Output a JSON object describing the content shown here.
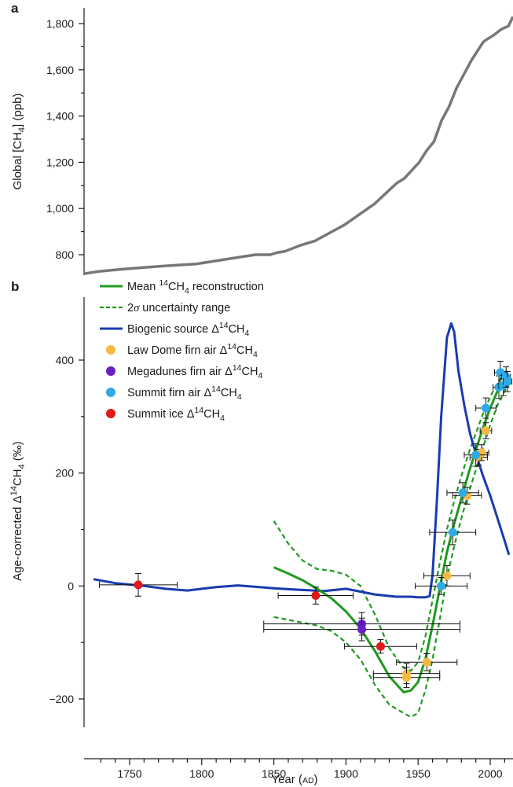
{
  "chart_data": [
    {
      "panel": "a",
      "type": "line",
      "ylabel_parts": {
        "pre": "Global [CH",
        "sub": "4",
        "post": "] (ppb)"
      },
      "yticks": [
        800,
        1000,
        1200,
        1400,
        1600,
        1800
      ],
      "ytick_labels": [
        "800",
        "1,000",
        "1,200",
        "1,400",
        "1,600",
        "1,800"
      ],
      "ylim": [
        710,
        1860
      ],
      "xlim": [
        1725,
        2013
      ],
      "series": [
        {
          "color": "#777777",
          "x": [
            1725,
            1735,
            1750,
            1765,
            1780,
            1800,
            1815,
            1830,
            1840,
            1850,
            1855,
            1860,
            1870,
            1880,
            1890,
            1900,
            1910,
            1920,
            1930,
            1935,
            1940,
            1945,
            1950,
            1955,
            1960,
            1965,
            1970,
            1975,
            1980,
            1985,
            1990,
            1993,
            1995,
            2000,
            2005,
            2010,
            2013
          ],
          "y": [
            718,
            728,
            737,
            745,
            752,
            760,
            775,
            790,
            800,
            800,
            810,
            815,
            840,
            860,
            895,
            930,
            975,
            1020,
            1080,
            1110,
            1130,
            1165,
            1200,
            1250,
            1290,
            1380,
            1440,
            1520,
            1580,
            1640,
            1690,
            1720,
            1730,
            1750,
            1775,
            1790,
            1830
          ]
        }
      ]
    },
    {
      "panel": "b",
      "type": "line",
      "xlabel_parts": {
        "pre": "Year (",
        "sc": "AD",
        "post": ")"
      },
      "ylabel_parts": {
        "pre": "Age-corrected Δ",
        "sup": "14",
        "mid": "CH",
        "sub": "4",
        "post": " (‰)"
      },
      "xticks": [
        1750,
        1800,
        1850,
        1900,
        1950,
        2000
      ],
      "xtick_labels": [
        "1750",
        "1800",
        "1850",
        "1900",
        "1950",
        "2000"
      ],
      "yticks": [
        -200,
        0,
        200,
        400
      ],
      "ytick_labels": [
        "−200",
        "0",
        "200",
        "400"
      ],
      "xlim": [
        1725,
        2013
      ],
      "ylim": [
        -255,
        505
      ],
      "legend_position": "top-left",
      "series": [
        {
          "key": "mean",
          "label": {
            "pre": "Mean ",
            "sup": "14",
            "mid": "CH",
            "sub": "4",
            "post": " reconstruction"
          },
          "color": "#1f9a1f",
          "style": "solid",
          "x": [
            1850,
            1860,
            1870,
            1880,
            1890,
            1900,
            1910,
            1920,
            1930,
            1940,
            1945,
            1950,
            1955,
            1960,
            1965,
            1970,
            1975,
            1980,
            1985,
            1990,
            1995,
            2000,
            2005,
            2010,
            2013
          ],
          "y": [
            33,
            22,
            10,
            -5,
            -22,
            -45,
            -75,
            -115,
            -160,
            -188,
            -185,
            -170,
            -130,
            -70,
            -5,
            60,
            110,
            155,
            200,
            240,
            280,
            315,
            345,
            365,
            375
          ]
        },
        {
          "key": "upper",
          "label": {
            "pre": "2",
            "ital": "σ",
            "post": " uncertainty range"
          },
          "color": "#1f9a1f",
          "style": "dashed",
          "x": [
            1850,
            1860,
            1870,
            1880,
            1890,
            1900,
            1910,
            1920,
            1930,
            1940,
            1945,
            1950,
            1955,
            1960,
            1965,
            1970,
            1975,
            1980,
            1985,
            1990,
            1995,
            2000,
            2005,
            2010,
            2013
          ],
          "y": [
            115,
            75,
            45,
            30,
            27,
            20,
            0,
            -50,
            -110,
            -145,
            -150,
            -135,
            -90,
            -25,
            40,
            100,
            150,
            195,
            235,
            270,
            305,
            335,
            360,
            375,
            380
          ]
        },
        {
          "key": "lower",
          "label": null,
          "color": "#1f9a1f",
          "style": "dashed",
          "x": [
            1850,
            1860,
            1870,
            1880,
            1890,
            1900,
            1910,
            1920,
            1930,
            1940,
            1945,
            1950,
            1955,
            1960,
            1965,
            1970,
            1975,
            1980,
            1985,
            1990,
            1995,
            2000,
            2005,
            2010,
            2013
          ],
          "y": [
            -55,
            -60,
            -65,
            -70,
            -80,
            -100,
            -130,
            -175,
            -210,
            -225,
            -232,
            -225,
            -185,
            -130,
            -60,
            15,
            70,
            120,
            165,
            205,
            245,
            285,
            320,
            345,
            355
          ]
        },
        {
          "key": "biogenic",
          "label": {
            "pre": "Biogenic source Δ",
            "sup": "14",
            "mid": "CH",
            "sub": "4",
            "post": ""
          },
          "color": "#1a3bb0",
          "style": "solid",
          "x": [
            1725,
            1740,
            1760,
            1775,
            1790,
            1800,
            1810,
            1825,
            1840,
            1850,
            1870,
            1885,
            1900,
            1910,
            1920,
            1935,
            1945,
            1950,
            1955,
            1958,
            1960,
            1963,
            1966,
            1970,
            1973,
            1975,
            1978,
            1982,
            1986,
            1990,
            1995,
            2000,
            2005,
            2010,
            2013
          ],
          "y": [
            12,
            5,
            0,
            -5,
            -8,
            -5,
            -2,
            1,
            -2,
            -4,
            -7,
            -9,
            -5,
            -10,
            -15,
            -19,
            -19,
            -20,
            -20,
            -18,
            20,
            150,
            300,
            440,
            465,
            450,
            380,
            320,
            270,
            235,
            195,
            160,
            120,
            80,
            55
          ]
        }
      ],
      "point_series": [
        {
          "key": "lawdome",
          "label": {
            "pre": "Law Dome firn air Δ",
            "sup": "14",
            "mid": "CH",
            "sub": "4",
            "post": ""
          },
          "color": "#f5b841",
          "points": [
            {
              "x": 1942,
              "y": -155,
              "xerr": 23,
              "yerr": 18
            },
            {
              "x": 1942,
              "y": -162,
              "xerr": 23,
              "yerr": 18
            },
            {
              "x": 1956,
              "y": -135,
              "xerr": 21,
              "yerr": 15
            },
            {
              "x": 1970,
              "y": 18,
              "xerr": 16,
              "yerr": 18
            },
            {
              "x": 1984,
              "y": 160,
              "xerr": 10,
              "yerr": 15
            },
            {
              "x": 1992,
              "y": 228,
              "xerr": 6,
              "yerr": 14
            },
            {
              "x": 1994,
              "y": 236,
              "xerr": 5,
              "yerr": 14
            },
            {
              "x": 1997,
              "y": 275,
              "xerr": 4,
              "yerr": 14
            }
          ]
        },
        {
          "key": "megadunes",
          "label": {
            "pre": "Megadunes firn air Δ",
            "sup": "14",
            "mid": "CH",
            "sub": "4",
            "post": ""
          },
          "color": "#6a1fc4",
          "points": [
            {
              "x": 1911,
              "y": -67,
              "xerr": 68,
              "yerr": 20
            },
            {
              "x": 1911,
              "y": -77,
              "xerr": 68,
              "yerr": 20
            }
          ]
        },
        {
          "key": "summitfirn",
          "label": {
            "pre": "Summit firn air Δ",
            "sup": "14",
            "mid": "CH",
            "sub": "4",
            "post": ""
          },
          "color": "#2eaae6",
          "points": [
            {
              "x": 1966,
              "y": 0,
              "xerr": 18,
              "yerr": 15
            },
            {
              "x": 1974,
              "y": 95,
              "xerr": 16,
              "yerr": 22
            },
            {
              "x": 1981,
              "y": 165,
              "xerr": 11,
              "yerr": 18
            },
            {
              "x": 1990,
              "y": 232,
              "xerr": 8,
              "yerr": 20
            },
            {
              "x": 1997,
              "y": 315,
              "xerr": 7,
              "yerr": 18
            },
            {
              "x": 2006,
              "y": 352,
              "xerr": 4,
              "yerr": 20
            },
            {
              "x": 2007,
              "y": 378,
              "xerr": 4,
              "yerr": 20
            },
            {
              "x": 2009,
              "y": 355,
              "xerr": 3,
              "yerr": 18
            },
            {
              "x": 2011,
              "y": 370,
              "xerr": 3,
              "yerr": 18
            },
            {
              "x": 2012,
              "y": 362,
              "xerr": 3,
              "yerr": 18
            }
          ]
        },
        {
          "key": "summitice",
          "label": {
            "pre": "Summit ice Δ",
            "sup": "14",
            "mid": "CH",
            "sub": "4",
            "post": ""
          },
          "color": "#e01a1a",
          "points": [
            {
              "x": 1756,
              "y": 2,
              "xerr": 27,
              "yerr": 20
            },
            {
              "x": 1879,
              "y": -17,
              "xerr": 26,
              "yerr": 15
            },
            {
              "x": 1924,
              "y": -107,
              "xerr": 25,
              "yerr": 12
            }
          ]
        }
      ]
    }
  ]
}
